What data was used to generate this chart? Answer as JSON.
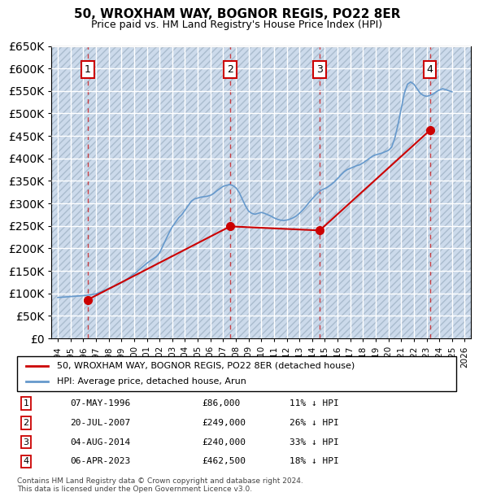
{
  "title": "50, WROXHAM WAY, BOGNOR REGIS, PO22 8ER",
  "subtitle": "Price paid vs. HM Land Registry's House Price Index (HPI)",
  "hpi_color": "#6699cc",
  "price_color": "#cc0000",
  "sale_marker_color": "#cc0000",
  "bg_color": "#ddeeff",
  "hatch_color": "#bbccdd",
  "grid_color": "#ffffff",
  "ylim": [
    0,
    650000
  ],
  "yticks": [
    0,
    50000,
    100000,
    150000,
    200000,
    250000,
    300000,
    350000,
    400000,
    450000,
    500000,
    550000,
    600000,
    650000
  ],
  "xlim_start": 1993.5,
  "xlim_end": 2026.5,
  "sales": [
    {
      "label": "1",
      "year": 1996.35,
      "price": 86000,
      "date": "07-MAY-1996",
      "pct": "11%"
    },
    {
      "label": "2",
      "year": 2007.55,
      "price": 249000,
      "date": "20-JUL-2007",
      "pct": "26%"
    },
    {
      "label": "3",
      "year": 2014.59,
      "price": 240000,
      "date": "04-AUG-2014",
      "pct": "33%"
    },
    {
      "label": "4",
      "year": 2023.26,
      "price": 462500,
      "date": "06-APR-2023",
      "pct": "18%"
    }
  ],
  "legend_label_price": "50, WROXHAM WAY, BOGNOR REGIS, PO22 8ER (detached house)",
  "legend_label_hpi": "HPI: Average price, detached house, Arun",
  "footer": "Contains HM Land Registry data © Crown copyright and database right 2024.\nThis data is licensed under the Open Government Licence v3.0.",
  "hpi_data_years": [
    1994,
    1994.25,
    1994.5,
    1994.75,
    1995,
    1995.25,
    1995.5,
    1995.75,
    1996,
    1996.25,
    1996.5,
    1996.75,
    1997,
    1997.25,
    1997.5,
    1997.75,
    1998,
    1998.25,
    1998.5,
    1998.75,
    1999,
    1999.25,
    1999.5,
    1999.75,
    2000,
    2000.25,
    2000.5,
    2000.75,
    2001,
    2001.25,
    2001.5,
    2001.75,
    2002,
    2002.25,
    2002.5,
    2002.75,
    2003,
    2003.25,
    2003.5,
    2003.75,
    2004,
    2004.25,
    2004.5,
    2004.75,
    2005,
    2005.25,
    2005.5,
    2005.75,
    2006,
    2006.25,
    2006.5,
    2006.75,
    2007,
    2007.25,
    2007.5,
    2007.75,
    2008,
    2008.25,
    2008.5,
    2008.75,
    2009,
    2009.25,
    2009.5,
    2009.75,
    2010,
    2010.25,
    2010.5,
    2010.75,
    2011,
    2011.25,
    2011.5,
    2011.75,
    2012,
    2012.25,
    2012.5,
    2012.75,
    2013,
    2013.25,
    2013.5,
    2013.75,
    2014,
    2014.25,
    2014.5,
    2014.75,
    2015,
    2015.25,
    2015.5,
    2015.75,
    2016,
    2016.25,
    2016.5,
    2016.75,
    2017,
    2017.25,
    2017.5,
    2017.75,
    2018,
    2018.25,
    2018.5,
    2018.75,
    2019,
    2019.25,
    2019.5,
    2019.75,
    2020,
    2020.25,
    2020.5,
    2020.75,
    2021,
    2021.25,
    2021.5,
    2021.75,
    2022,
    2022.25,
    2022.5,
    2022.75,
    2023,
    2023.25,
    2023.5,
    2023.75,
    2024,
    2024.25,
    2024.5,
    2025
  ],
  "hpi_data_values": [
    91000,
    91500,
    92000,
    92500,
    93000,
    93500,
    94000,
    94500,
    95000,
    96000,
    97000,
    98000,
    99000,
    102000,
    105000,
    108000,
    111000,
    114000,
    117000,
    120000,
    124000,
    128000,
    133000,
    138000,
    143000,
    149000,
    155000,
    161000,
    167000,
    172000,
    177000,
    182000,
    190000,
    205000,
    220000,
    235000,
    248000,
    258000,
    268000,
    275000,
    285000,
    295000,
    305000,
    310000,
    312000,
    314000,
    315000,
    316000,
    318000,
    322000,
    328000,
    333000,
    338000,
    340000,
    342000,
    340000,
    335000,
    325000,
    310000,
    295000,
    283000,
    278000,
    276000,
    278000,
    280000,
    278000,
    275000,
    272000,
    268000,
    265000,
    263000,
    262000,
    263000,
    265000,
    268000,
    272000,
    278000,
    285000,
    293000,
    302000,
    310000,
    318000,
    325000,
    330000,
    333000,
    337000,
    342000,
    348000,
    355000,
    363000,
    370000,
    375000,
    378000,
    381000,
    384000,
    386000,
    390000,
    395000,
    400000,
    405000,
    408000,
    410000,
    412000,
    415000,
    418000,
    425000,
    445000,
    475000,
    510000,
    545000,
    565000,
    570000,
    565000,
    555000,
    545000,
    540000,
    538000,
    540000,
    543000,
    548000,
    552000,
    555000,
    553000,
    548000
  ],
  "price_line_years": [
    1996.35,
    2007.55,
    2014.59,
    2023.26
  ],
  "price_line_values": [
    86000,
    249000,
    240000,
    462500
  ]
}
